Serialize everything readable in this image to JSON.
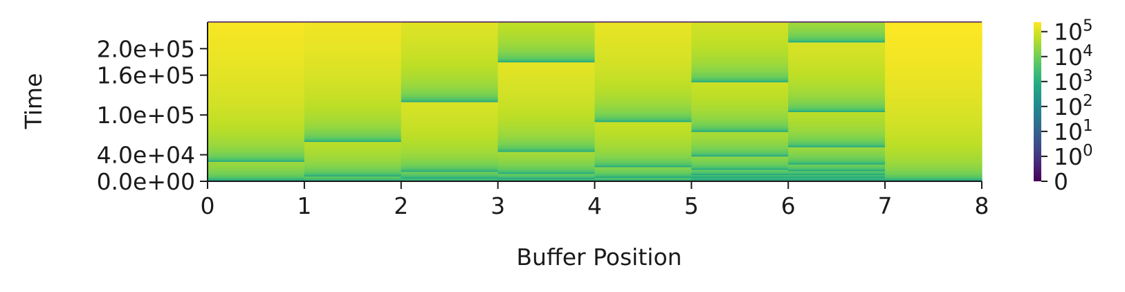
{
  "chart_data": {
    "type": "heatmap",
    "title": "",
    "xlabel": "Buffer Position",
    "ylabel": "Time",
    "xlim": [
      0,
      8
    ],
    "ylim": [
      0,
      240000
    ],
    "x_ticks": [
      "0",
      "1",
      "2",
      "3",
      "4",
      "5",
      "6",
      "7",
      "8"
    ],
    "y_ticks": [
      {
        "value": 0,
        "label": "0.0e+00"
      },
      {
        "value": 40000,
        "label": "4.0e+04"
      },
      {
        "value": 100000,
        "label": "1.0e+05"
      },
      {
        "value": 160000,
        "label": "1.6e+05"
      },
      {
        "value": 200000,
        "label": "2.0e+05"
      }
    ],
    "colormap": "viridis",
    "color_scale": "symlog",
    "colorbar_ticks": [
      {
        "value": 0,
        "label": "0"
      },
      {
        "value": 1,
        "label": "10",
        "exp": "0"
      },
      {
        "value": 10,
        "label": "10",
        "exp": "1"
      },
      {
        "value": 100,
        "label": "10",
        "exp": "2"
      },
      {
        "value": 1000,
        "label": "10",
        "exp": "3"
      },
      {
        "value": 10000,
        "label": "10",
        "exp": "4"
      },
      {
        "value": 100000,
        "label": "10",
        "exp": "5"
      }
    ],
    "columns": [
      {
        "position": 0,
        "resets": [
          2000,
          30000,
          240000
        ]
      },
      {
        "position": 1,
        "resets": [
          1000,
          8000,
          60000,
          240000
        ]
      },
      {
        "position": 2,
        "resets": [
          1000,
          5000,
          15000,
          120000,
          240000
        ]
      },
      {
        "position": 3,
        "resets": [
          1000,
          4000,
          12000,
          45000,
          180000,
          240000
        ]
      },
      {
        "position": 4,
        "resets": [
          1000,
          6000,
          22000,
          90000,
          240000
        ]
      },
      {
        "position": 5,
        "resets": [
          1000,
          3000,
          6000,
          10000,
          18000,
          38000,
          75000,
          150000,
          240000
        ]
      },
      {
        "position": 6,
        "resets": [
          1000,
          3000,
          6000,
          10000,
          16000,
          26000,
          52000,
          105000,
          210000,
          240000
        ]
      },
      {
        "position": 7,
        "resets": [
          2000,
          240000
        ]
      }
    ]
  }
}
